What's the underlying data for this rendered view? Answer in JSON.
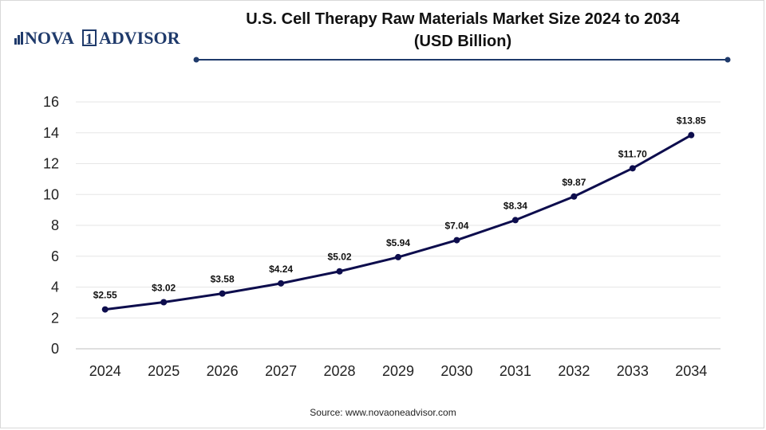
{
  "brand": {
    "logo_text": "NOVA 1 ADVISOR",
    "color": "#1f3a6b"
  },
  "title": {
    "line1": "U.S. Cell Therapy Raw Materials Market Size 2024 to 2034",
    "line2": "(USD Billion)"
  },
  "source": "Source: www.novaoneadvisor.com",
  "colors": {
    "line": "#0d0d4d",
    "marker": "#0d0d4d",
    "grid": "#e6e6e6",
    "axis": "#bfbfbf",
    "accent_rule": "#1f3a6b"
  },
  "chart_data": {
    "type": "line",
    "title": "U.S. Cell Therapy Raw Materials Market Size 2024 to 2034 (USD Billion)",
    "xlabel": "",
    "ylabel": "",
    "categories": [
      "2024",
      "2025",
      "2026",
      "2027",
      "2028",
      "2029",
      "2030",
      "2031",
      "2032",
      "2033",
      "2034"
    ],
    "series": [
      {
        "values": [
          2.55,
          3.02,
          3.58,
          4.24,
          5.02,
          5.94,
          7.04,
          8.34,
          9.87,
          11.7,
          13.85
        ],
        "labels": [
          "$2.55",
          "$3.02",
          "$3.58",
          "$4.24",
          "$5.02",
          "$5.94",
          "$7.04",
          "$8.34",
          "$9.87",
          "$11.70",
          "$13.85"
        ]
      }
    ],
    "ylim": [
      0,
      16
    ],
    "yticks": [
      "0",
      "2",
      "4",
      "6",
      "8",
      "10",
      "12",
      "14",
      "16"
    ],
    "grid": true,
    "legend": "none"
  }
}
